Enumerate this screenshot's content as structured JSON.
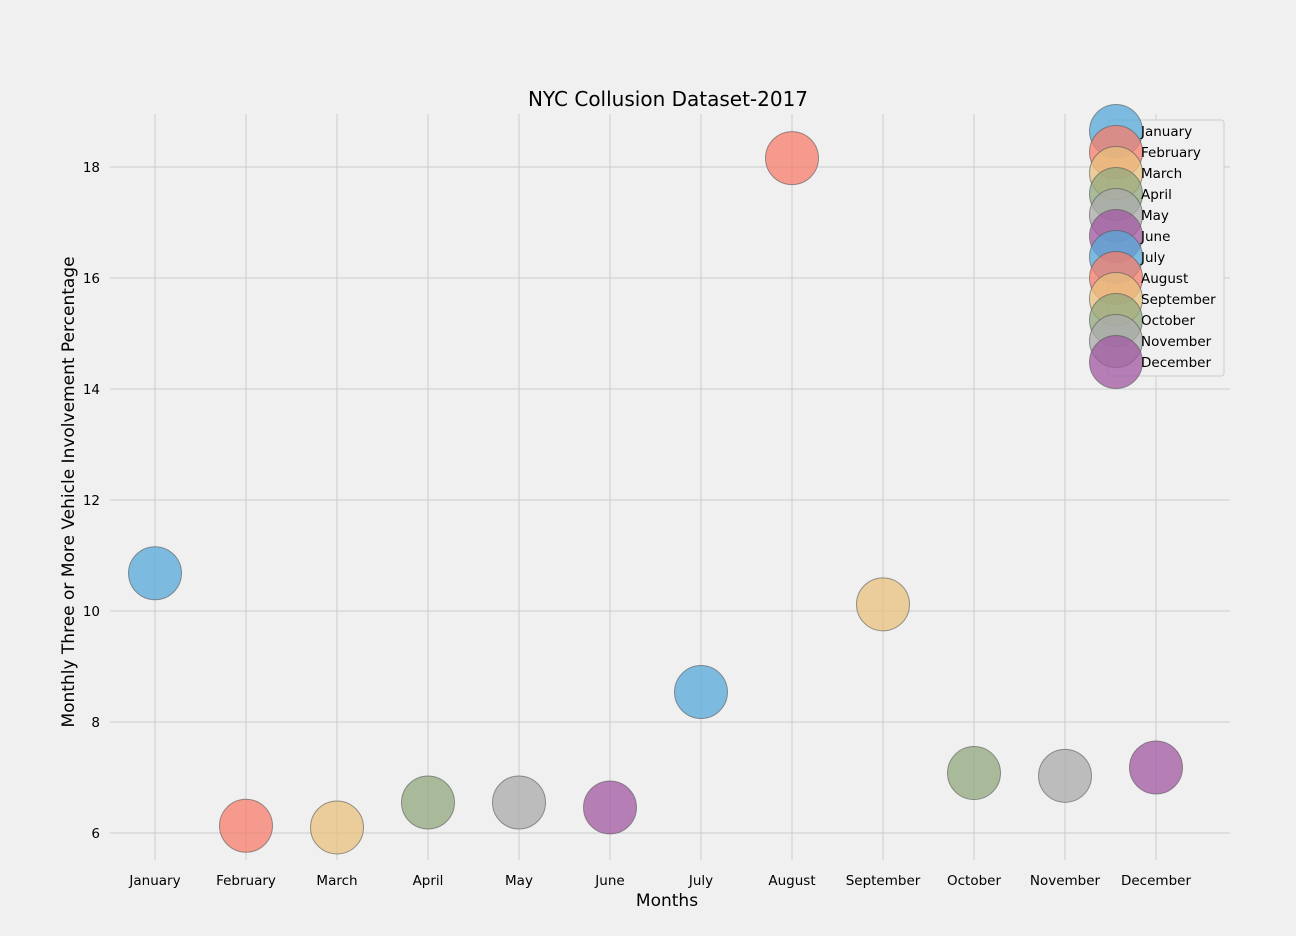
{
  "chart_data": {
    "type": "scatter",
    "title": "NYC Collusion Dataset-2017",
    "xlabel": "Months",
    "ylabel": "Monthly Three or More Vehicle Involvement Percentage",
    "categories": [
      "January",
      "February",
      "March",
      "April",
      "May",
      "June",
      "July",
      "August",
      "September",
      "October",
      "November",
      "December"
    ],
    "values": [
      10.68,
      6.13,
      6.1,
      6.55,
      6.55,
      6.46,
      8.54,
      18.16,
      10.12,
      7.08,
      7.03,
      7.18
    ],
    "yticks": [
      "6",
      "8",
      "10",
      "12",
      "14",
      "16",
      "18"
    ],
    "ylim": [
      5.5,
      19.0
    ],
    "grid": true,
    "legend_position": "top-right",
    "colors": {
      "January": "#56a9da",
      "February": "#f77e6b",
      "March": "#e8c17d",
      "April": "#92a87e",
      "May": "#ababab",
      "June": "#a15aa3",
      "July": "#56a9da",
      "August": "#f77e6b",
      "September": "#e8c17d",
      "October": "#92a87e",
      "November": "#ababab",
      "December": "#a15aa3"
    },
    "background": "#f0f0f0",
    "grid_color": "#cbcbcb"
  }
}
